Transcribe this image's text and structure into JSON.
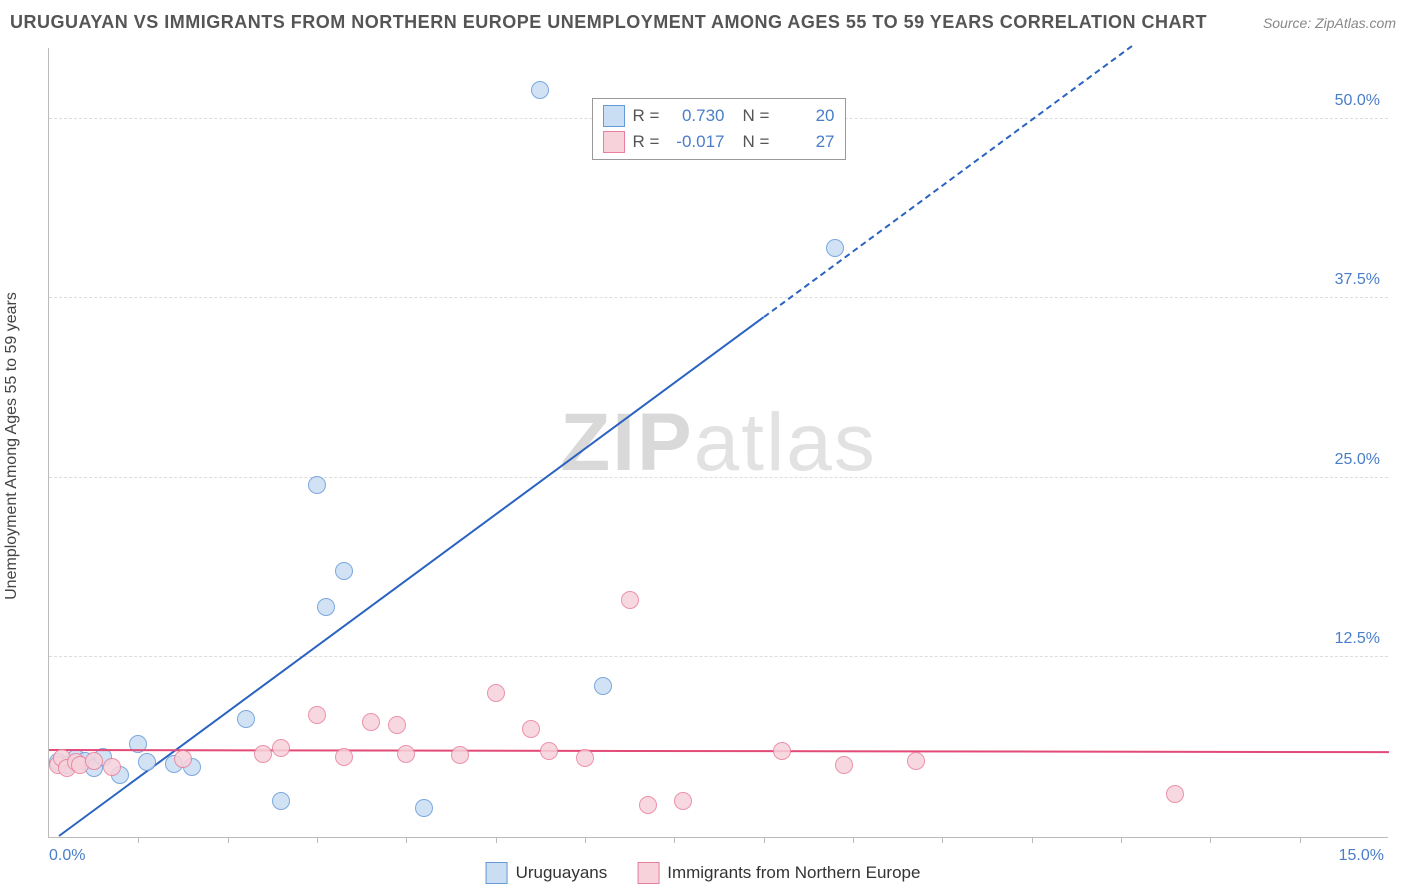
{
  "title": "URUGUAYAN VS IMMIGRANTS FROM NORTHERN EUROPE UNEMPLOYMENT AMONG AGES 55 TO 59 YEARS CORRELATION CHART",
  "source": "Source: ZipAtlas.com",
  "ylabel": "Unemployment Among Ages 55 to 59 years",
  "watermark_a": "ZIP",
  "watermark_b": "atlas",
  "chart": {
    "type": "scatter",
    "background_color": "#ffffff",
    "grid_color": "#dddddd",
    "axis_color": "#bbbbbb",
    "tick_label_color": "#4a7ec9",
    "x": {
      "min": 0.0,
      "max": 15.0,
      "tick_step": 1.0,
      "show_labels": [
        "0.0%",
        "15.0%"
      ]
    },
    "y": {
      "min": 0.0,
      "max": 55.0,
      "ticks": [
        12.5,
        25.0,
        37.5,
        50.0
      ],
      "tick_labels": [
        "12.5%",
        "25.0%",
        "37.5%",
        "50.0%"
      ]
    },
    "series": [
      {
        "name": "Uruguayans",
        "fill": "#c9ddf3",
        "stroke": "#6699d8",
        "line_color": "#2a63c0",
        "marker_radius": 9,
        "R": "0.730",
        "N": "20",
        "trend": {
          "slope": 4.58,
          "intercept": -0.5,
          "solid_xmax": 8.0,
          "dash_pattern": "10,8"
        },
        "points": [
          [
            0.1,
            5.2
          ],
          [
            0.2,
            5.0
          ],
          [
            0.3,
            5.5
          ],
          [
            0.4,
            5.3
          ],
          [
            0.5,
            4.8
          ],
          [
            0.6,
            5.6
          ],
          [
            0.8,
            4.3
          ],
          [
            1.0,
            6.5
          ],
          [
            1.1,
            5.2
          ],
          [
            1.4,
            5.1
          ],
          [
            1.6,
            4.9
          ],
          [
            2.2,
            8.2
          ],
          [
            2.6,
            2.5
          ],
          [
            3.0,
            24.5
          ],
          [
            3.1,
            16.0
          ],
          [
            3.3,
            18.5
          ],
          [
            4.2,
            2.0
          ],
          [
            5.5,
            52.0
          ],
          [
            6.2,
            10.5
          ],
          [
            8.8,
            41.0
          ]
        ]
      },
      {
        "name": "Immigrants from Northern Europe",
        "fill": "#f7d2db",
        "stroke": "#e87f9c",
        "line_color": "#e24a78",
        "marker_radius": 9,
        "R": "-0.017",
        "N": "27",
        "trend": {
          "slope": -0.01,
          "intercept": 6.0,
          "solid_xmax": 15.0,
          "dash_pattern": null
        },
        "points": [
          [
            0.1,
            5.0
          ],
          [
            0.15,
            5.5
          ],
          [
            0.2,
            4.8
          ],
          [
            0.3,
            5.2
          ],
          [
            0.35,
            5.0
          ],
          [
            0.5,
            5.3
          ],
          [
            0.7,
            4.9
          ],
          [
            1.5,
            5.4
          ],
          [
            2.4,
            5.8
          ],
          [
            2.6,
            6.2
          ],
          [
            3.0,
            8.5
          ],
          [
            3.3,
            5.6
          ],
          [
            3.6,
            8.0
          ],
          [
            3.9,
            7.8
          ],
          [
            4.0,
            5.8
          ],
          [
            4.6,
            5.7
          ],
          [
            5.0,
            10.0
          ],
          [
            5.4,
            7.5
          ],
          [
            5.6,
            6.0
          ],
          [
            6.0,
            5.5
          ],
          [
            6.5,
            16.5
          ],
          [
            6.7,
            2.2
          ],
          [
            7.1,
            2.5
          ],
          [
            8.2,
            6.0
          ],
          [
            8.9,
            5.0
          ],
          [
            9.7,
            5.3
          ],
          [
            12.6,
            3.0
          ]
        ]
      }
    ]
  },
  "legend_top": {
    "R_label": "R  =",
    "N_label": "N  ="
  },
  "legend_bottom": [
    {
      "label": "Uruguayans",
      "fill": "#c9ddf3",
      "stroke": "#6699d8"
    },
    {
      "label": "Immigrants from Northern Europe",
      "fill": "#f7d2db",
      "stroke": "#e87f9c"
    }
  ]
}
